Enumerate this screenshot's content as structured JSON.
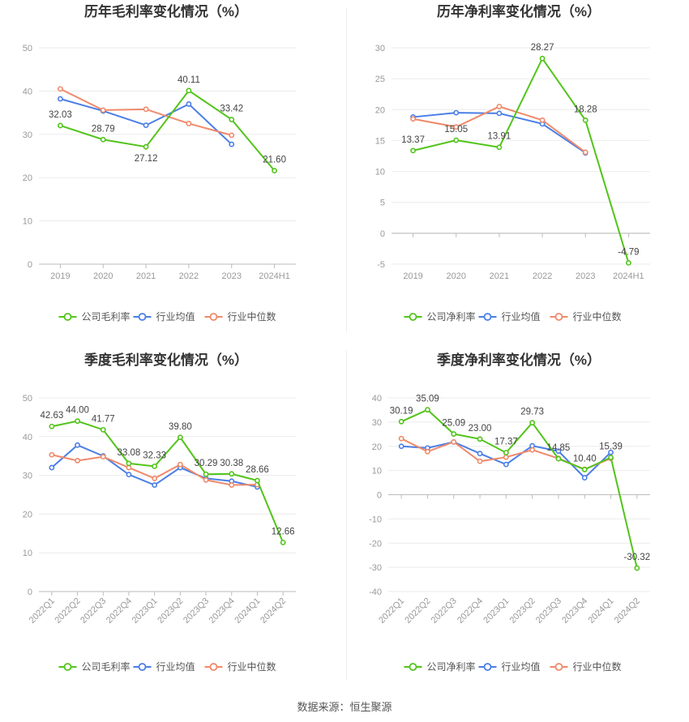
{
  "source_text": "数据来源：恒生聚源",
  "chart_data": [
    {
      "type": "line",
      "title": "历年毛利率变化情况（%）",
      "categories": [
        "2019",
        "2020",
        "2021",
        "2022",
        "2023",
        "2024H1"
      ],
      "ylim": [
        0,
        50
      ],
      "yticks": [
        0,
        10,
        20,
        30,
        40,
        50
      ],
      "grid": true,
      "legend": "bottom",
      "rotate_labels": false,
      "series": [
        {
          "name": "公司毛利率",
          "color": "#52c41a",
          "values": [
            32.03,
            28.79,
            27.12,
            40.11,
            33.42,
            21.6
          ],
          "labels": [
            "32.03",
            "28.79",
            "27.12",
            "40.11",
            "33.42",
            "21.60"
          ]
        },
        {
          "name": "行业均值",
          "color": "#4a7ee6",
          "values": [
            38.2,
            35.4,
            32.1,
            37.0,
            27.7,
            null
          ]
        },
        {
          "name": "行业中位数",
          "color": "#f0896a",
          "values": [
            40.5,
            35.6,
            35.8,
            32.5,
            29.8,
            null
          ]
        }
      ]
    },
    {
      "type": "line",
      "title": "历年净利率变化情况（%）",
      "categories": [
        "2019",
        "2020",
        "2021",
        "2022",
        "2023",
        "2024H1"
      ],
      "ylim": [
        -5,
        30
      ],
      "yticks": [
        -5,
        0,
        5,
        10,
        15,
        20,
        25,
        30
      ],
      "grid": true,
      "legend": "bottom",
      "rotate_labels": false,
      "series": [
        {
          "name": "公司净利率",
          "color": "#52c41a",
          "values": [
            13.37,
            15.05,
            13.91,
            28.27,
            18.28,
            -4.79
          ],
          "labels": [
            "13.37",
            "15.05",
            "13.91",
            "28.27",
            "18.28",
            "-4.79"
          ]
        },
        {
          "name": "行业均值",
          "color": "#4a7ee6",
          "values": [
            18.8,
            19.5,
            19.4,
            17.7,
            13.0,
            null
          ]
        },
        {
          "name": "行业中位数",
          "color": "#f0896a",
          "values": [
            18.5,
            17.2,
            20.5,
            18.3,
            13.1,
            null
          ]
        }
      ]
    },
    {
      "type": "line",
      "title": "季度毛利率变化情况（%）",
      "categories": [
        "2022Q1",
        "2022Q2",
        "2022Q3",
        "2022Q4",
        "2023Q1",
        "2023Q2",
        "2023Q3",
        "2023Q4",
        "2024Q1",
        "2024Q2"
      ],
      "ylim": [
        0,
        50
      ],
      "yticks": [
        0,
        10,
        20,
        30,
        40,
        50
      ],
      "grid": true,
      "legend": "bottom",
      "rotate_labels": true,
      "series": [
        {
          "name": "公司毛利率",
          "color": "#52c41a",
          "values": [
            42.63,
            44.0,
            41.77,
            33.08,
            32.33,
            39.8,
            30.29,
            30.38,
            28.66,
            12.66
          ],
          "labels": [
            "42.63",
            "44.00",
            "41.77",
            "33.08",
            "32.33",
            "39.80",
            "30.29",
            "30.38",
            "28.66",
            "12.66"
          ]
        },
        {
          "name": "行业均值",
          "color": "#4a7ee6",
          "values": [
            32.0,
            37.8,
            35.0,
            30.2,
            27.5,
            32.0,
            29.2,
            28.5,
            27.0,
            null
          ]
        },
        {
          "name": "行业中位数",
          "color": "#f0896a",
          "values": [
            35.3,
            33.8,
            34.8,
            32.0,
            29.2,
            32.8,
            28.8,
            27.5,
            27.6,
            null
          ]
        }
      ]
    },
    {
      "type": "line",
      "title": "季度净利率变化情况（%）",
      "categories": [
        "2022Q1",
        "2022Q2",
        "2022Q3",
        "2022Q4",
        "2023Q1",
        "2023Q2",
        "2023Q3",
        "2023Q4",
        "2024Q1",
        "2024Q2"
      ],
      "ylim": [
        -40,
        40
      ],
      "yticks": [
        -40,
        -30,
        -20,
        -10,
        0,
        10,
        20,
        30,
        40
      ],
      "grid": true,
      "legend": "bottom",
      "rotate_labels": true,
      "series": [
        {
          "name": "公司净利率",
          "color": "#52c41a",
          "values": [
            30.19,
            35.09,
            25.09,
            23.0,
            17.37,
            29.73,
            14.85,
            10.4,
            15.39,
            -30.32
          ],
          "labels": [
            "30.19",
            "35.09",
            "25.09",
            "23.00",
            "17.37",
            "29.73",
            "14.85",
            "10.40",
            "15.39",
            "-30.32"
          ]
        },
        {
          "name": "行业均值",
          "color": "#4a7ee6",
          "values": [
            20.0,
            19.3,
            21.8,
            17.0,
            12.5,
            20.2,
            18.0,
            7.0,
            17.5,
            null
          ]
        },
        {
          "name": "行业中位数",
          "color": "#f0896a",
          "values": [
            23.2,
            17.8,
            21.8,
            13.8,
            15.5,
            18.5,
            15.0,
            10.5,
            15.0,
            null
          ]
        }
      ]
    }
  ]
}
